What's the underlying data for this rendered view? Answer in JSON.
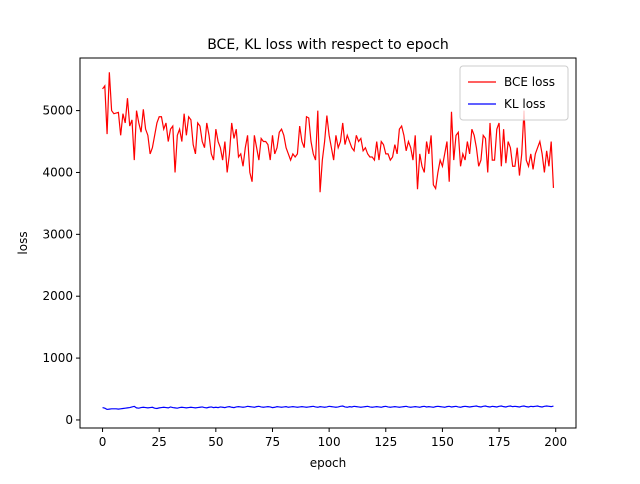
{
  "chart_data": {
    "type": "line",
    "title": "BCE, KL loss with respect to epoch",
    "x_label": "epoch",
    "y_label": "loss",
    "x": [
      0,
      1,
      2,
      3,
      4,
      5,
      6,
      7,
      8,
      9,
      10,
      11,
      12,
      13,
      14,
      15,
      16,
      17,
      18,
      19,
      20,
      21,
      22,
      23,
      24,
      25,
      26,
      27,
      28,
      29,
      30,
      31,
      32,
      33,
      34,
      35,
      36,
      37,
      38,
      39,
      40,
      41,
      42,
      43,
      44,
      45,
      46,
      47,
      48,
      49,
      50,
      51,
      52,
      53,
      54,
      55,
      56,
      57,
      58,
      59,
      60,
      61,
      62,
      63,
      64,
      65,
      66,
      67,
      68,
      69,
      70,
      71,
      72,
      73,
      74,
      75,
      76,
      77,
      78,
      79,
      80,
      81,
      82,
      83,
      84,
      85,
      86,
      87,
      88,
      89,
      90,
      91,
      92,
      93,
      94,
      95,
      96,
      97,
      98,
      99,
      100,
      101,
      102,
      103,
      104,
      105,
      106,
      107,
      108,
      109,
      110,
      111,
      112,
      113,
      114,
      115,
      116,
      117,
      118,
      119,
      120,
      121,
      122,
      123,
      124,
      125,
      126,
      127,
      128,
      129,
      130,
      131,
      132,
      133,
      134,
      135,
      136,
      137,
      138,
      139,
      140,
      141,
      142,
      143,
      144,
      145,
      146,
      147,
      148,
      149,
      150,
      151,
      152,
      153,
      154,
      155,
      156,
      157,
      158,
      159,
      160,
      161,
      162,
      163,
      164,
      165,
      166,
      167,
      168,
      169,
      170,
      171,
      172,
      173,
      174,
      175,
      176,
      177,
      178,
      179,
      180,
      181,
      182,
      183,
      184,
      185,
      186,
      187,
      188,
      189,
      190,
      191,
      192,
      193,
      194,
      195,
      196,
      197,
      198,
      199
    ],
    "series": [
      {
        "name": "BCE loss",
        "color": "#ff0000",
        "values": [
          5350,
          5400,
          4620,
          5620,
          5000,
          4950,
          4960,
          4970,
          4600,
          4950,
          4800,
          5200,
          4750,
          4850,
          4200,
          5000,
          4800,
          4650,
          5020,
          4700,
          4600,
          4300,
          4400,
          4600,
          4800,
          4900,
          4900,
          4700,
          4800,
          4500,
          4700,
          4750,
          4000,
          4600,
          4700,
          4500,
          4950,
          4600,
          4900,
          4850,
          4450,
          4300,
          4800,
          4750,
          4500,
          4400,
          4800,
          4600,
          4300,
          4200,
          4700,
          4500,
          4400,
          4200,
          4500,
          4000,
          4300,
          4800,
          4550,
          4700,
          4250,
          4300,
          4100,
          4400,
          4600,
          4000,
          3850,
          4600,
          4400,
          4200,
          4550,
          4500,
          4500,
          4450,
          4200,
          4600,
          4300,
          4400,
          4650,
          4700,
          4600,
          4400,
          4300,
          4200,
          4300,
          4250,
          4300,
          4750,
          4500,
          4400,
          4900,
          4880,
          4500,
          4300,
          4200,
          5000,
          3680,
          4200,
          4500,
          4920,
          4600,
          4400,
          4200,
          4600,
          4400,
          4500,
          4800,
          4450,
          4600,
          4500,
          4400,
          4350,
          4600,
          4500,
          4550,
          4350,
          4400,
          4300,
          4250,
          4250,
          4200,
          4500,
          4200,
          4500,
          4450,
          4300,
          4300,
          4200,
          4250,
          4450,
          4300,
          4700,
          4750,
          4600,
          4350,
          4500,
          4400,
          4200,
          4600,
          3730,
          4300,
          4100,
          4000,
          4500,
          4300,
          4600,
          3800,
          3740,
          4000,
          4200,
          4100,
          4300,
          4500,
          3850,
          4980,
          4200,
          4600,
          4650,
          4100,
          4300,
          4200,
          4500,
          4300,
          4700,
          4600,
          4400,
          4100,
          4200,
          4600,
          4550,
          4000,
          4800,
          4200,
          4200,
          4700,
          4800,
          4100,
          4700,
          4150,
          4500,
          4400,
          4100,
          4100,
          4400,
          3950,
          4300,
          5000,
          4200,
          4100,
          4300,
          4050,
          4300,
          4400,
          4500,
          4300,
          4000,
          4350,
          4100,
          4500,
          3750
        ]
      },
      {
        "name": "KL loss",
        "color": "#0000ff",
        "values": [
          200,
          190,
          170,
          175,
          180,
          180,
          180,
          175,
          180,
          185,
          190,
          195,
          200,
          210,
          220,
          195,
          190,
          200,
          205,
          200,
          195,
          200,
          205,
          190,
          185,
          195,
          200,
          205,
          200,
          195,
          210,
          200,
          195,
          190,
          200,
          205,
          200,
          195,
          200,
          205,
          200,
          195,
          200,
          205,
          210,
          200,
          195,
          205,
          210,
          200,
          205,
          200,
          210,
          205,
          200,
          210,
          215,
          205,
          200,
          210,
          215,
          210,
          205,
          210,
          220,
          215,
          210,
          205,
          215,
          220,
          210,
          205,
          210,
          215,
          210,
          200,
          205,
          215,
          210,
          205,
          210,
          215,
          205,
          210,
          215,
          210,
          205,
          210,
          215,
          210,
          205,
          210,
          215,
          220,
          210,
          205,
          215,
          210,
          205,
          210,
          220,
          215,
          210,
          205,
          210,
          220,
          225,
          210,
          205,
          215,
          210,
          220,
          215,
          210,
          205,
          210,
          215,
          220,
          210,
          205,
          210,
          215,
          210,
          205,
          215,
          220,
          210,
          205,
          210,
          215,
          210,
          205,
          210,
          215,
          220,
          210,
          205,
          210,
          215,
          210,
          205,
          215,
          220,
          210,
          215,
          210,
          205,
          215,
          220,
          215,
          210,
          205,
          215,
          220,
          210,
          215,
          220,
          210,
          205,
          215,
          220,
          215,
          210,
          215,
          220,
          225,
          215,
          210,
          220,
          225,
          215,
          210,
          220,
          215,
          210,
          220,
          225,
          215,
          210,
          220,
          225,
          215,
          220,
          215,
          210,
          220,
          225,
          215,
          210,
          220,
          215,
          220,
          225,
          215,
          210,
          220,
          225,
          220,
          215,
          225
        ]
      }
    ],
    "xlim": [
      -9.95,
      208.95
    ],
    "ylim": [
      -130,
      5850
    ],
    "xticks": [
      0,
      25,
      50,
      75,
      100,
      125,
      150,
      175,
      200
    ],
    "yticks": [
      0,
      1000,
      2000,
      3000,
      4000,
      5000
    ],
    "legend": "upper right"
  }
}
